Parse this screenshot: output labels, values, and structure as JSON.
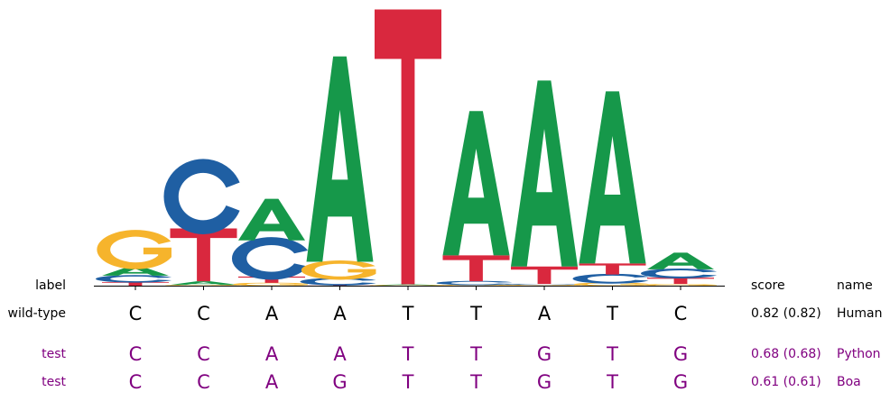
{
  "chart_data": {
    "type": "sequence-logo",
    "positions": [
      {
        "stack": [
          [
            "T",
            0.013
          ],
          [
            "C",
            0.023
          ],
          [
            "A",
            0.033
          ],
          [
            "G",
            0.122
          ]
        ]
      },
      {
        "stack": [
          [
            "G",
            0.003
          ],
          [
            "A",
            0.013
          ],
          [
            "T",
            0.19
          ],
          [
            "C",
            0.23
          ]
        ]
      },
      {
        "stack": [
          [
            "G",
            0.01
          ],
          [
            "T",
            0.023
          ],
          [
            "C",
            0.13
          ],
          [
            "A",
            0.15
          ]
        ]
      },
      {
        "stack": [
          [
            "T",
            0.003
          ],
          [
            "C",
            0.023
          ],
          [
            "G",
            0.06
          ],
          [
            "A",
            0.74
          ]
        ]
      },
      {
        "stack": [
          [
            "C",
            0.001
          ],
          [
            "G",
            0.002
          ],
          [
            "A",
            0.003
          ],
          [
            "T",
            0.99
          ]
        ]
      },
      {
        "stack": [
          [
            "G",
            0.003
          ],
          [
            "C",
            0.013
          ],
          [
            "T",
            0.093
          ],
          [
            "A",
            0.52
          ]
        ]
      },
      {
        "stack": [
          [
            "G",
            0.003
          ],
          [
            "C",
            0.003
          ],
          [
            "T",
            0.063
          ],
          [
            "A",
            0.67
          ]
        ]
      },
      {
        "stack": [
          [
            "G",
            0.01
          ],
          [
            "C",
            0.03
          ],
          [
            "T",
            0.04
          ],
          [
            "A",
            0.62
          ]
        ]
      },
      {
        "stack": [
          [
            "G",
            0.006
          ],
          [
            "T",
            0.023
          ],
          [
            "C",
            0.03
          ],
          [
            "A",
            0.06
          ]
        ]
      }
    ],
    "colors": {
      "A": "#16984a",
      "C": "#1f5fa3",
      "G": "#f6b42c",
      "T": "#d9283e"
    }
  },
  "headers": {
    "label": "label",
    "score": "score",
    "name": "name"
  },
  "rows": [
    {
      "label": "wild-type",
      "bases": [
        "C",
        "C",
        "A",
        "A",
        "T",
        "T",
        "A",
        "T",
        "C"
      ],
      "score": "0.82 (0.82)",
      "name": "Human",
      "color": "#000000"
    },
    {
      "label": "test",
      "bases": [
        "C",
        "C",
        "A",
        "A",
        "T",
        "T",
        "G",
        "T",
        "G"
      ],
      "score": "0.68 (0.68)",
      "name": "Python",
      "color": "#800080"
    },
    {
      "label": "test",
      "bases": [
        "C",
        "C",
        "A",
        "G",
        "T",
        "T",
        "G",
        "T",
        "G"
      ],
      "score": "0.61 (0.61)",
      "name": "Boa",
      "color": "#800080"
    }
  ]
}
